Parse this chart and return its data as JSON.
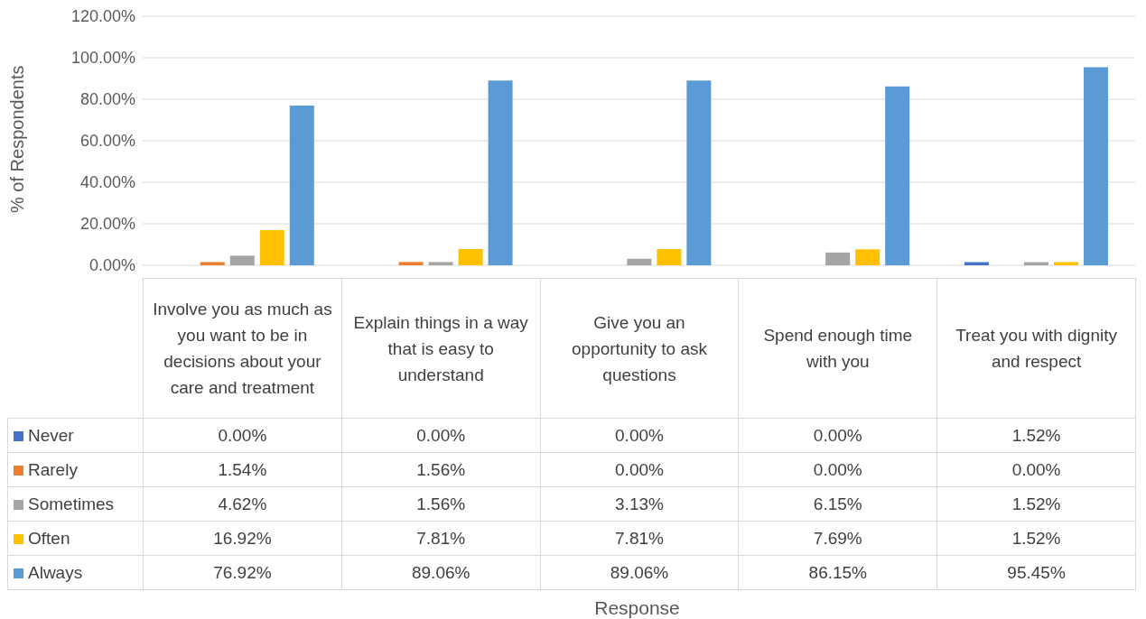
{
  "chart_data": {
    "type": "bar",
    "annotations": [
      "Response"
    ],
    "ylabel": "% of Respondents",
    "categories": [
      "Involve you as much as you want to be in decisions about your care and treatment",
      "Explain things in a way that is easy to understand",
      "Give you an opportunity to ask questions",
      "Spend enough time with you",
      "Treat you with dignity and respect"
    ],
    "series": [
      {
        "name": "Never",
        "color": "#4472c4",
        "values": [
          0,
          0,
          0,
          0,
          1.52
        ],
        "value_labels": [
          "0.00%",
          "0.00%",
          "0.00%",
          "0.00%",
          "1.52%"
        ]
      },
      {
        "name": "Rarely",
        "color": "#ed7d31",
        "values": [
          1.54,
          1.56,
          0,
          0,
          0
        ],
        "value_labels": [
          "1.54%",
          "1.56%",
          "0.00%",
          "0.00%",
          "0.00%"
        ]
      },
      {
        "name": "Sometimes",
        "color": "#a5a5a5",
        "values": [
          4.62,
          1.56,
          3.13,
          6.15,
          1.52
        ],
        "value_labels": [
          "4.62%",
          "1.56%",
          "3.13%",
          "6.15%",
          "1.52%"
        ]
      },
      {
        "name": "Often",
        "color": "#ffc000",
        "values": [
          16.92,
          7.81,
          7.81,
          7.69,
          1.52
        ],
        "value_labels": [
          "16.92%",
          "7.81%",
          "7.81%",
          "7.69%",
          "1.52%"
        ]
      },
      {
        "name": "Always",
        "color": "#5b9bd5",
        "values": [
          76.92,
          89.06,
          89.06,
          86.15,
          95.45
        ],
        "value_labels": [
          "76.92%",
          "89.06%",
          "89.06%",
          "86.15%",
          "95.45%"
        ]
      }
    ],
    "ylim": [
      0,
      120
    ],
    "yticks": [
      {
        "value": 0,
        "label": "0.00%"
      },
      {
        "value": 20,
        "label": "20.00%"
      },
      {
        "value": 40,
        "label": "40.00%"
      },
      {
        "value": 60,
        "label": "60.00%"
      },
      {
        "value": 80,
        "label": "80.00%"
      },
      {
        "value": 100,
        "label": "100.00%"
      },
      {
        "value": 120,
        "label": "120.00%"
      }
    ],
    "grid": "y",
    "legend": "bottom left"
  }
}
